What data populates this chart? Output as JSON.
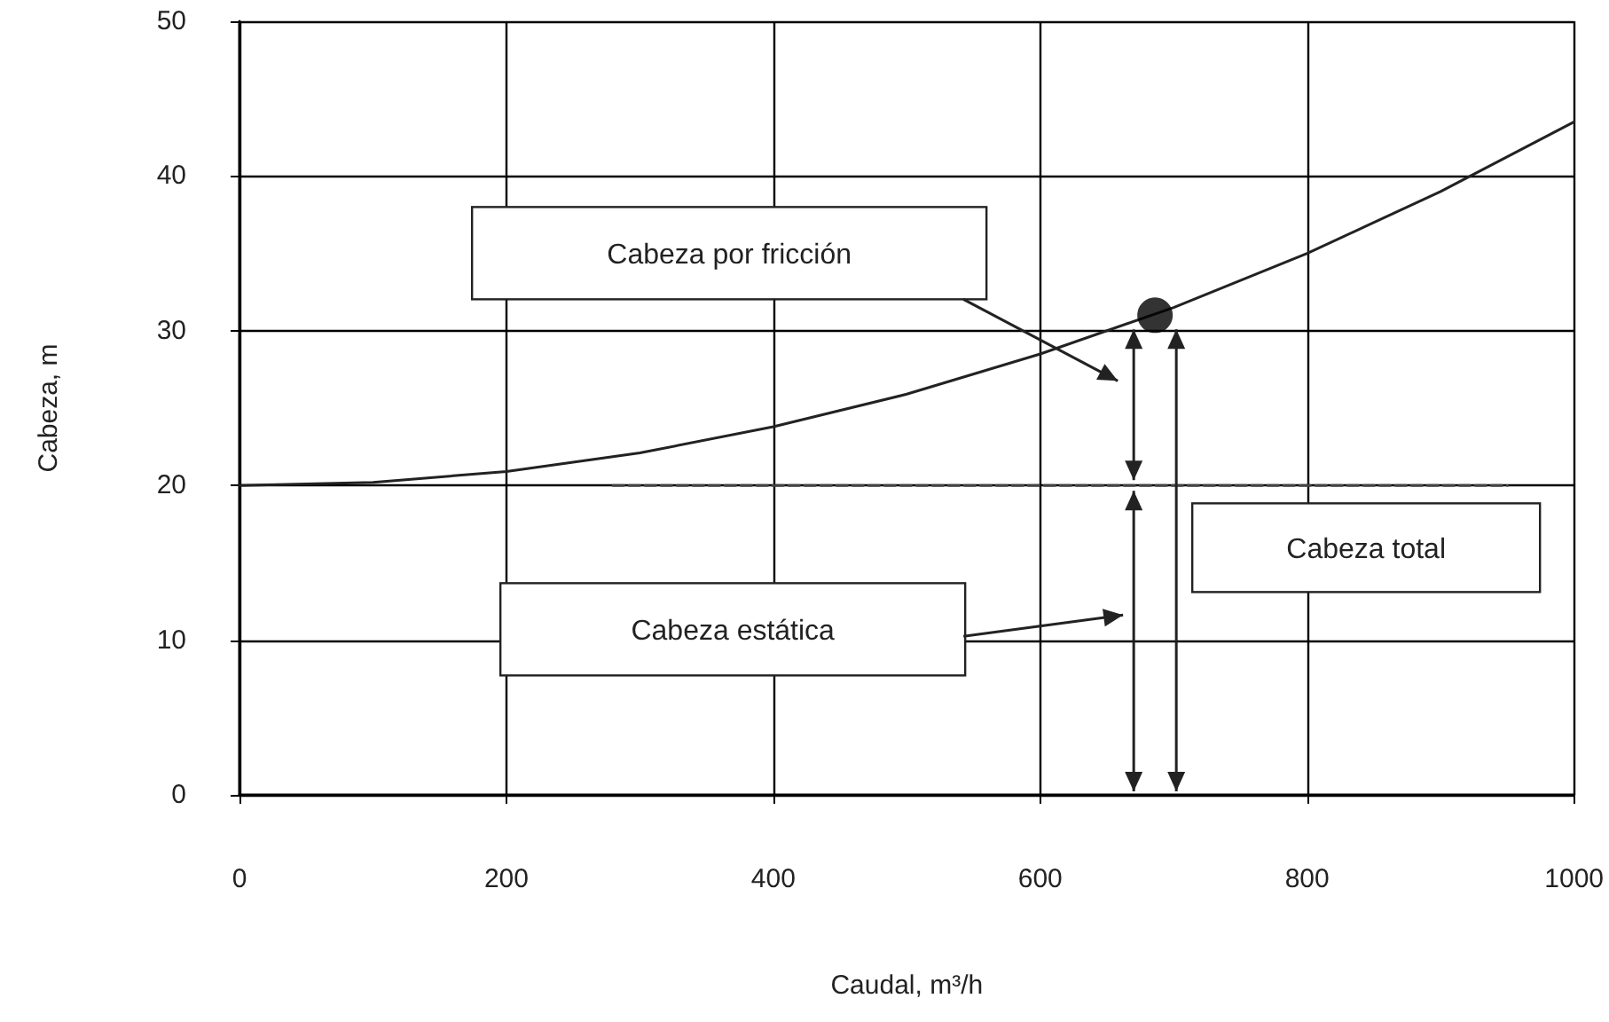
{
  "chart_data": {
    "type": "line",
    "xlabel": "Caudal, m³/h",
    "ylabel": "Cabeza, m",
    "xlim": [
      0,
      1000
    ],
    "xticks": [
      0,
      200,
      400,
      600,
      800,
      1000
    ],
    "ylim": [
      0,
      50
    ],
    "yticks": [
      0,
      10,
      20,
      30,
      40,
      50
    ],
    "grid": true,
    "series": [
      {
        "color": "#222222",
        "x": [
          0,
          100,
          200,
          300,
          400,
          500,
          600,
          700,
          800,
          900,
          1000
        ],
        "values": [
          20,
          20.2,
          20.9,
          22.1,
          23.8,
          25.9,
          28.5,
          31.5,
          35,
          39,
          43.5
        ]
      },
      {
        "type": "line",
        "line_style": "dashed",
        "color": "#444444",
        "x": [
          280,
          950
        ],
        "values": [
          20,
          20
        ]
      },
      {
        "type": "scatter",
        "marker": "circle",
        "color": "#000000",
        "x": [
          686
        ],
        "values": [
          31
        ]
      }
    ],
    "annotations": [
      "Cabeza por fricción",
      "Cabeza estática",
      "Cabeza total"
    ]
  }
}
